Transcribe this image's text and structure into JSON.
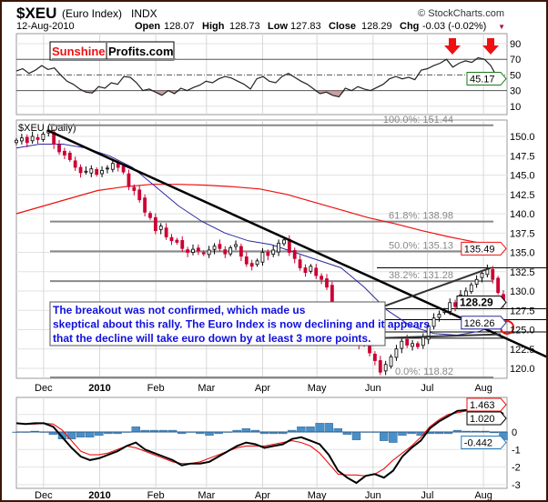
{
  "header": {
    "symbol": "$XEU",
    "name": "(Euro Index)",
    "exchange": "INDX",
    "copyright": "© StockCharts.com",
    "date": "12-Aug-2010",
    "open_label": "Open",
    "open": "128.07",
    "high_label": "High",
    "high": "128.73",
    "low_label": "Low",
    "low": "127.83",
    "close_label": "Close",
    "close": "128.29",
    "chg_label": "Chg",
    "chg": "-0.03 (-0.02%)"
  },
  "logo": {
    "part1": "Sunshine",
    "part2": "Profits.com"
  },
  "colors": {
    "up": "#000000",
    "down": "#cc0033",
    "ma_short": "#2a2aa0",
    "ma_long": "#ee1111",
    "macd": "#000000",
    "signal": "#ee1111",
    "histogram": "#4a90c8",
    "annotation": "#1010dd",
    "frame": "#3b1608"
  },
  "chart_data": [
    {
      "type": "line",
      "panel": "RSI",
      "x_range": [
        "2009-11-16",
        "2010-08-12"
      ],
      "ylim": [
        0,
        100
      ],
      "yticks": [
        "90",
        "70",
        "50",
        "30",
        "10"
      ],
      "levels": [
        70,
        50,
        30
      ],
      "last_value_label": "45.17",
      "values": [
        55,
        58,
        52,
        56,
        62,
        57,
        59,
        50,
        42,
        38,
        32,
        28,
        27,
        35,
        33,
        40,
        38,
        48,
        47,
        40,
        30,
        32,
        28,
        24,
        30,
        26,
        33,
        30,
        34,
        37,
        42,
        40,
        45,
        48,
        46,
        42,
        38,
        32,
        45,
        48,
        42,
        40,
        48,
        52,
        47,
        42,
        38,
        32,
        26,
        28,
        24,
        22,
        33,
        30,
        35,
        32,
        30,
        34,
        38,
        45,
        48,
        45,
        47,
        44,
        56,
        58,
        62,
        65,
        70,
        60,
        65,
        68,
        66,
        72,
        70,
        62,
        47,
        45.17
      ]
    },
    {
      "type": "candlestick",
      "panel": "Price",
      "title": "$XEU (Daily)",
      "x_range": [
        "2009-11-16",
        "2010-08-12"
      ],
      "ylim": [
        118.5,
        152
      ],
      "yticks": [
        "150.0",
        "147.5",
        "145.0",
        "142.5",
        "140.0",
        "137.5",
        "135.0",
        "132.5",
        "130.0",
        "127.5",
        "125.0",
        "122.5",
        "120.0"
      ],
      "xticks": [
        "Dec",
        "2010",
        "Feb",
        "Mar",
        "Apr",
        "May",
        "Jun",
        "Jul",
        "Aug"
      ],
      "closes": [
        149.5,
        149.8,
        149.2,
        150.0,
        149.6,
        150.3,
        150.8,
        149.0,
        148.0,
        147.6,
        147.0,
        146.0,
        145.3,
        145.5,
        145.8,
        145.1,
        145.6,
        145.9,
        146.5,
        146.0,
        145.4,
        143.5,
        143.0,
        141.8,
        140.2,
        139.5,
        137.8,
        138.4,
        137.0,
        136.5,
        136.3,
        135.5,
        135.0,
        135.4,
        135.2,
        134.8,
        135.3,
        135.8,
        135.5,
        134.8,
        135.6,
        136.0,
        134.5,
        133.5,
        133.2,
        133.9,
        135.0,
        134.6,
        135.3,
        136.2,
        136.6,
        135.0,
        134.2,
        133.0,
        132.4,
        133.2,
        132.0,
        131.5,
        130.5,
        128.0,
        126.5,
        127.5,
        125.5,
        124.0,
        123.0,
        123.5,
        122.0,
        121.0,
        119.5,
        120.5,
        121.5,
        122.5,
        123.5,
        123.0,
        123.2,
        122.8,
        124.0,
        125.5,
        126.5,
        127.0,
        127.5,
        128.5,
        128.0,
        129.5,
        130.0,
        130.8,
        131.5,
        132.3,
        132.8,
        131.5,
        129.8,
        128.29
      ],
      "ma_short": [
        148.5,
        149.0,
        149.0,
        148.5,
        147.5,
        146.0,
        143.5,
        141.0,
        139.0,
        137.5,
        136.5,
        136.0,
        135.0,
        134.0,
        133.0,
        130.5,
        127.5,
        125.5,
        124.5,
        124.3,
        124.8,
        126.26
      ],
      "ma_long": [
        140.0,
        141.0,
        142.0,
        143.0,
        143.5,
        143.8,
        143.8,
        143.7,
        143.5,
        143.2,
        142.5,
        141.5,
        140.5,
        139.5,
        138.7,
        137.8,
        137.0,
        136.3,
        135.49
      ],
      "last_labels": {
        "ma_long": "135.49",
        "close": "128.29",
        "ma_short": "126.26"
      },
      "fibonacci": [
        {
          "label": "100.0%: 151.44",
          "value": 151.44
        },
        {
          "label": "61.8%: 138.98",
          "value": 138.98
        },
        {
          "label": "50.0%: 135.13",
          "value": 135.13
        },
        {
          "label": "38.2%: 131.28",
          "value": 131.28
        },
        {
          "label": "0.0%: 118.82",
          "value": 118.82
        }
      ],
      "annotation": "The breakout was not confirmed, which made us skeptical about this rally. The Euro Index is now declining and it appears that the decline will take euro down by at least 3 more points."
    },
    {
      "type": "line",
      "panel": "MACD",
      "x_range": [
        "2009-11-16",
        "2010-08-12"
      ],
      "ylim": [
        -3.2,
        1.9
      ],
      "yticks": [
        "0",
        "-1",
        "-2",
        "-3"
      ],
      "last_labels": {
        "signal": "1.463",
        "macd": "1.020",
        "histogram": "-0.442"
      },
      "macd": [
        0.5,
        0.45,
        0.5,
        0.5,
        0.3,
        -0.3,
        -0.9,
        -1.4,
        -1.6,
        -1.5,
        -1.3,
        -1.1,
        -0.8,
        -0.6,
        -1.0,
        -1.2,
        -1.4,
        -1.6,
        -1.9,
        -1.8,
        -1.8,
        -1.7,
        -1.4,
        -1.1,
        -0.8,
        -0.6,
        -0.7,
        -0.9,
        -0.8,
        -0.7,
        -0.4,
        -0.3,
        -0.5,
        -0.7,
        -1.3,
        -2.2,
        -2.6,
        -2.9,
        -2.5,
        -2.4,
        -2.6,
        -2.2,
        -1.4,
        -0.9,
        -0.5,
        0.2,
        0.6,
        0.9,
        1.2,
        1.25,
        1.35,
        1.45,
        1.4,
        1.02
      ],
      "signal": [
        0.5,
        0.45,
        0.45,
        0.5,
        0.45,
        0.1,
        -0.5,
        -1.1,
        -1.3,
        -1.3,
        -1.2,
        -1.0,
        -0.8,
        -0.9,
        -1.1,
        -1.3,
        -1.5,
        -1.7,
        -1.8,
        -1.8,
        -1.7,
        -1.5,
        -1.3,
        -1.1,
        -0.9,
        -0.8,
        -0.8,
        -0.8,
        -0.7,
        -0.6,
        -0.5,
        -0.6,
        -0.8,
        -1.2,
        -1.8,
        -2.4,
        -2.45,
        -2.45,
        -2.5,
        -2.4,
        -2.1,
        -1.6,
        -1.2,
        -0.8,
        -0.3,
        0.3,
        0.7,
        1.0,
        1.1,
        1.2,
        1.3,
        1.4,
        1.45,
        1.463
      ]
    }
  ]
}
